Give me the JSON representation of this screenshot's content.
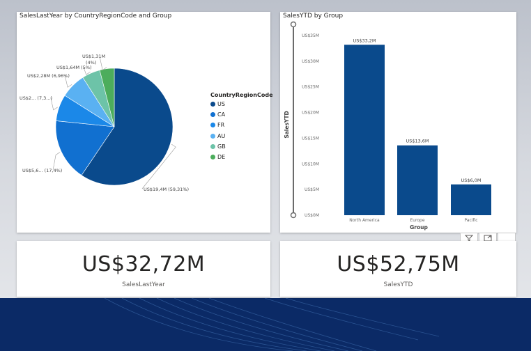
{
  "pie_visual": {
    "title": "SalesLastYear by CountryRegionCode and Group",
    "legend_title": "CountryRegionCode"
  },
  "bar_visual": {
    "title": "SalesYTD by Group",
    "y_axis_title": "SalesYTD",
    "x_axis_title": "Group"
  },
  "kpis": [
    {
      "value": "US$32,72M",
      "label": "SalesLastYear"
    },
    {
      "value": "US$52,75M",
      "label": "SalesYTD"
    }
  ],
  "chart_data": [
    {
      "type": "pie",
      "title": "SalesLastYear by CountryRegionCode and Group",
      "legend_title": "CountryRegionCode",
      "legend_position": "right",
      "categories": [
        "US",
        "CA",
        "FR",
        "AU",
        "GB",
        "DE"
      ],
      "values": [
        19.4,
        5.6,
        2.4,
        2.28,
        1.64,
        1.31
      ],
      "data_labels": [
        "US$19,4M (59,31%)",
        "US$5,6... (17,4%)",
        "US$2... (7,3...)",
        "US$2,28M (6,96%)",
        "US$1,64M (5%)",
        "US$1,31M (4%)"
      ],
      "colors": [
        "#0a4a8c",
        "#1170d0",
        "#1b88e8",
        "#5ab1f2",
        "#6dc3a8",
        "#4cad5c"
      ]
    },
    {
      "type": "bar",
      "title": "SalesYTD by Group",
      "xlabel": "Group",
      "ylabel": "SalesYTD",
      "categories": [
        "North America",
        "Europe",
        "Pacific"
      ],
      "values": [
        33.2,
        13.6,
        6.0
      ],
      "data_labels": [
        "US$33,2M",
        "US$13,6M",
        "US$6,0M"
      ],
      "ylim": [
        0,
        35
      ],
      "ytick_values": [
        0,
        5,
        10,
        15,
        20,
        25,
        30,
        35
      ],
      "ytick_labels": [
        "US$0M",
        "US$5M",
        "US$10M",
        "US$15M",
        "US$20M",
        "US$25M",
        "US$30M",
        "US$35M"
      ],
      "grid": false,
      "bar_color": "#0a4a8c"
    }
  ],
  "visual_header_icons": [
    "filter-icon",
    "focus-mode-icon",
    "more-options-icon"
  ]
}
